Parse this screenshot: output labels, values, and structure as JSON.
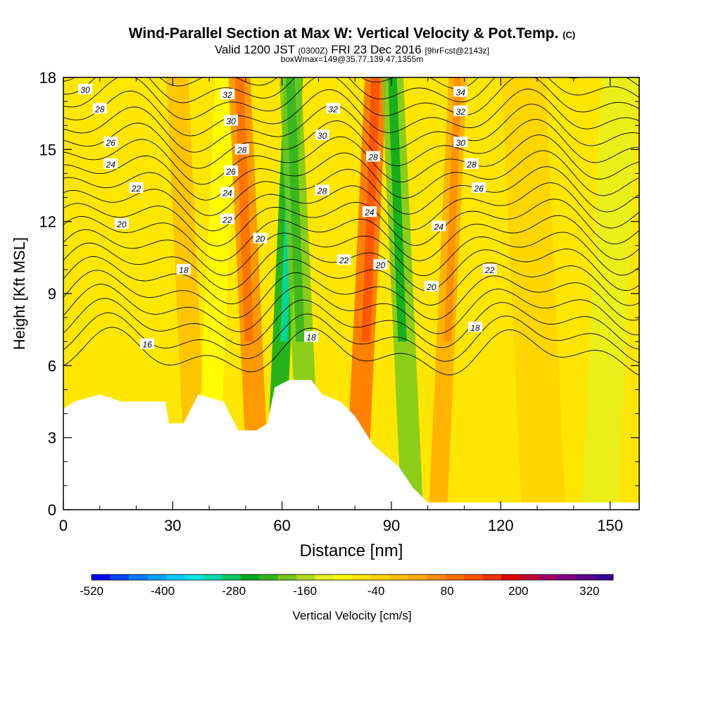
{
  "title": {
    "main": "Wind-Parallel Section at Max W: Vertical Velocity & Pot.Temp.",
    "mark": "(C)",
    "valid_prefix": "Valid 1200 JST",
    "valid_utc": "(0300Z)",
    "valid_date": "FRI 23 Dec 2016",
    "forecast": "[9hrFcst@2143z]",
    "box": "boxWmax=149@35.77,139.47,1355m"
  },
  "chart_data": {
    "type": "heatmap",
    "xlabel": "Distance [nm]",
    "ylabel": "Height [Kft MSL]",
    "xlim": [
      0,
      158
    ],
    "ylim": [
      0,
      18
    ],
    "x_ticks": [
      0,
      30,
      60,
      90,
      120,
      150
    ],
    "y_ticks": [
      0,
      3,
      6,
      9,
      12,
      15,
      18
    ],
    "colorbar": {
      "label": "Vertical Velocity [cm/s]",
      "min": -520,
      "max": 360,
      "step": 40,
      "tick_labels": [
        "-520",
        "-400",
        "-280",
        "-160",
        "-40",
        "80",
        "200",
        "320"
      ],
      "tick_values": [
        -520,
        -400,
        -280,
        -160,
        -40,
        80,
        200,
        320
      ],
      "colors": [
        "#0000ff",
        "#0a46ff",
        "#0a78ff",
        "#00a0ff",
        "#00c8ff",
        "#00e6e6",
        "#00dcaa",
        "#00c864",
        "#00aa1e",
        "#32b41e",
        "#78c81e",
        "#b4dc1e",
        "#e6f01e",
        "#ffff00",
        "#ffe600",
        "#ffd200",
        "#ffbe00",
        "#ffaa00",
        "#ff8c00",
        "#ff6e00",
        "#ff5000",
        "#f03200",
        "#dc0000",
        "#be0032",
        "#a00064",
        "#820082",
        "#5a008c",
        "#3c0096"
      ]
    },
    "velocity_bands": [
      {
        "x": 6,
        "w": 13,
        "value": 40
      },
      {
        "x": 20,
        "w": 10,
        "value": 40
      },
      {
        "x": 31,
        "w": 6,
        "value": 120
      },
      {
        "x": 39,
        "w": 6,
        "value": 0
      },
      {
        "x": 48,
        "w": 6,
        "value": 200
      },
      {
        "x": 58,
        "w": 5,
        "value": -200
      },
      {
        "x": 62,
        "w": 6,
        "value": -100
      },
      {
        "x": 80,
        "w": 6,
        "value": 240
      },
      {
        "x": 90,
        "w": 6,
        "value": -120
      },
      {
        "x": 103,
        "w": 5,
        "value": 160
      },
      {
        "x": 123,
        "w": 12,
        "value": 80
      },
      {
        "x": 145,
        "w": 10,
        "value": -40
      }
    ],
    "terrain": [
      [
        0,
        4.2
      ],
      [
        3,
        4.5
      ],
      [
        10,
        4.8
      ],
      [
        16,
        4.5
      ],
      [
        28,
        4.5
      ],
      [
        29,
        3.6
      ],
      [
        33,
        3.6
      ],
      [
        37,
        4.8
      ],
      [
        44,
        4.5
      ],
      [
        48,
        3.3
      ],
      [
        53,
        3.3
      ],
      [
        56,
        3.6
      ],
      [
        58,
        5.1
      ],
      [
        62,
        5.4
      ],
      [
        68,
        5.4
      ],
      [
        71,
        4.8
      ],
      [
        76,
        4.5
      ],
      [
        80,
        3.9
      ],
      [
        85,
        2.7
      ],
      [
        92,
        1.8
      ],
      [
        96,
        0.9
      ],
      [
        100,
        0.3
      ],
      [
        158,
        0.3
      ]
    ],
    "theta_contours": [
      16,
      17,
      18,
      19,
      20,
      21,
      22,
      23,
      24,
      25,
      26,
      27,
      28,
      29,
      30,
      31,
      32,
      33,
      34,
      35
    ],
    "contour_labels": [
      {
        "text": "30",
        "x": 6,
        "y": 17.5
      },
      {
        "text": "28",
        "x": 10,
        "y": 16.7
      },
      {
        "text": "26",
        "x": 13,
        "y": 15.3
      },
      {
        "text": "24",
        "x": 13,
        "y": 14.4
      },
      {
        "text": "22",
        "x": 20,
        "y": 13.4
      },
      {
        "text": "20",
        "x": 16,
        "y": 11.9
      },
      {
        "text": "18",
        "x": 33,
        "y": 10.0
      },
      {
        "text": "16",
        "x": 23,
        "y": 6.9
      },
      {
        "text": "32",
        "x": 45,
        "y": 17.3
      },
      {
        "text": "30",
        "x": 46,
        "y": 16.2
      },
      {
        "text": "28",
        "x": 49,
        "y": 15.0
      },
      {
        "text": "26",
        "x": 46,
        "y": 14.1
      },
      {
        "text": "24",
        "x": 45,
        "y": 13.2
      },
      {
        "text": "22",
        "x": 45,
        "y": 12.1
      },
      {
        "text": "20",
        "x": 54,
        "y": 11.3
      },
      {
        "text": "32",
        "x": 74,
        "y": 16.7
      },
      {
        "text": "30",
        "x": 71,
        "y": 15.6
      },
      {
        "text": "28",
        "x": 71,
        "y": 13.3
      },
      {
        "text": "22",
        "x": 77,
        "y": 10.4
      },
      {
        "text": "18",
        "x": 68,
        "y": 7.2
      },
      {
        "text": "28",
        "x": 85,
        "y": 14.7
      },
      {
        "text": "24",
        "x": 84,
        "y": 12.4
      },
      {
        "text": "20",
        "x": 87,
        "y": 10.2
      },
      {
        "text": "34",
        "x": 109,
        "y": 17.4
      },
      {
        "text": "32",
        "x": 109,
        "y": 16.6
      },
      {
        "text": "30",
        "x": 109,
        "y": 15.3
      },
      {
        "text": "28",
        "x": 112,
        "y": 14.4
      },
      {
        "text": "26",
        "x": 114,
        "y": 13.4
      },
      {
        "text": "24",
        "x": 103,
        "y": 11.8
      },
      {
        "text": "22",
        "x": 117,
        "y": 10.0
      },
      {
        "text": "20",
        "x": 101,
        "y": 9.3
      },
      {
        "text": "18",
        "x": 113,
        "y": 7.6
      }
    ]
  }
}
